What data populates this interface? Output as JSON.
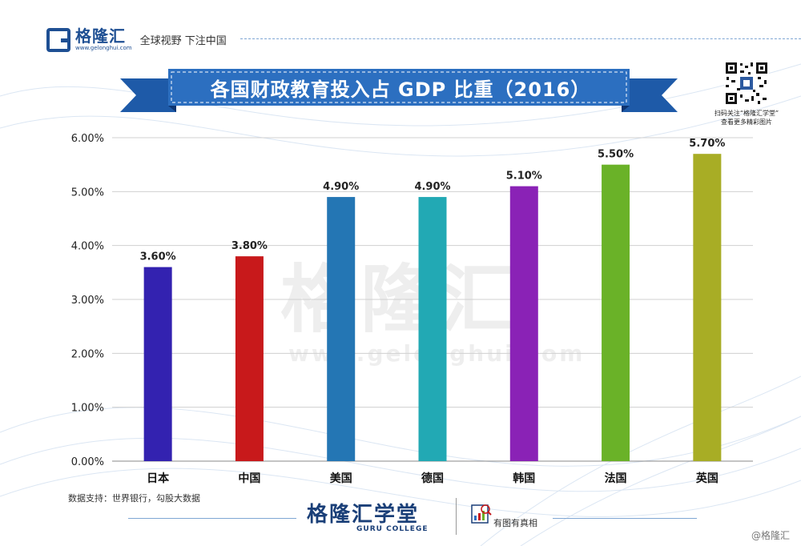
{
  "header": {
    "brand": "格隆汇",
    "url": "www.gelonghui.com",
    "slogan": "全球视野 下注中国"
  },
  "qr": {
    "caption_line1": "扫码关注“格隆汇学堂”",
    "caption_line2": "查看更多精彩图片"
  },
  "watermark": {
    "text": "格隆汇",
    "url": "www.gelonghui.com"
  },
  "chart_data": {
    "type": "bar",
    "title": "各国财政教育投入占 GDP 比重（2016）",
    "categories": [
      "日本",
      "中国",
      "美国",
      "德国",
      "韩国",
      "法国",
      "英国"
    ],
    "values": [
      3.6,
      3.8,
      4.9,
      4.9,
      5.1,
      5.5,
      5.7
    ],
    "value_labels": [
      "3.60%",
      "3.80%",
      "4.90%",
      "4.90%",
      "5.10%",
      "5.50%",
      "5.70%"
    ],
    "colors": [
      "#3322b0",
      "#c8191b",
      "#2476b4",
      "#22a9b4",
      "#8a22b6",
      "#6ab228",
      "#a8ad25"
    ],
    "ylim": [
      0,
      6
    ],
    "yticks": [
      0,
      1,
      2,
      3,
      4,
      5,
      6
    ],
    "ytick_labels": [
      "0.00%",
      "1.00%",
      "2.00%",
      "3.00%",
      "4.00%",
      "5.00%",
      "6.00%"
    ],
    "xlabel": "",
    "ylabel": "",
    "grid": true
  },
  "source": "数据支持：世界银行，勾股大数据",
  "footer": {
    "brand": "格隆汇学堂",
    "sub": "GURU COLLEGE",
    "tag": "有图有真相",
    "copyright": "@格隆汇"
  }
}
